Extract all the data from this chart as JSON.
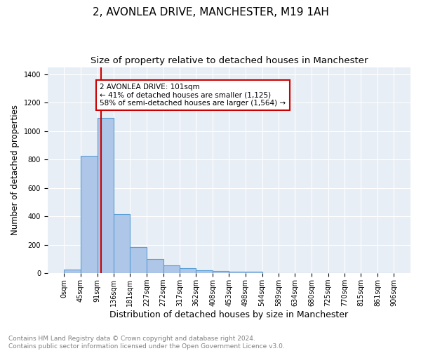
{
  "title1": "2, AVONLEA DRIVE, MANCHESTER, M19 1AH",
  "title2": "Size of property relative to detached houses in Manchester",
  "xlabel": "Distribution of detached houses by size in Manchester",
  "ylabel": "Number of detached properties",
  "footnote": "Contains HM Land Registry data © Crown copyright and database right 2024.\nContains public sector information licensed under the Open Government Licence v3.0.",
  "bar_edges": [
    0,
    45,
    91,
    136,
    181,
    227,
    272,
    317,
    362,
    408,
    453,
    498,
    544,
    589,
    634,
    680,
    725,
    770,
    815,
    861,
    906
  ],
  "bar_heights": [
    25,
    825,
    1090,
    415,
    185,
    100,
    57,
    35,
    22,
    14,
    12,
    12,
    0,
    0,
    0,
    0,
    0,
    0,
    0,
    0
  ],
  "bar_color": "#aec6e8",
  "bar_edgecolor": "#5a9fd4",
  "bar_linewidth": 0.8,
  "red_line_x": 101,
  "annotation_text": "2 AVONLEA DRIVE: 101sqm\n← 41% of detached houses are smaller (1,125)\n58% of semi-detached houses are larger (1,564) →",
  "annotation_box_color": "#ffffff",
  "annotation_box_edgecolor": "#cc0000",
  "ylim": [
    0,
    1450
  ],
  "yticks": [
    0,
    200,
    400,
    600,
    800,
    1000,
    1200,
    1400
  ],
  "plot_bg_color": "#e8eef5",
  "grid_color": "#ffffff",
  "title1_fontsize": 11,
  "title2_fontsize": 9.5,
  "xlabel_fontsize": 9,
  "ylabel_fontsize": 8.5,
  "footnote_fontsize": 6.5,
  "annotation_fontsize": 7.5,
  "tick_label_fontsize": 7
}
